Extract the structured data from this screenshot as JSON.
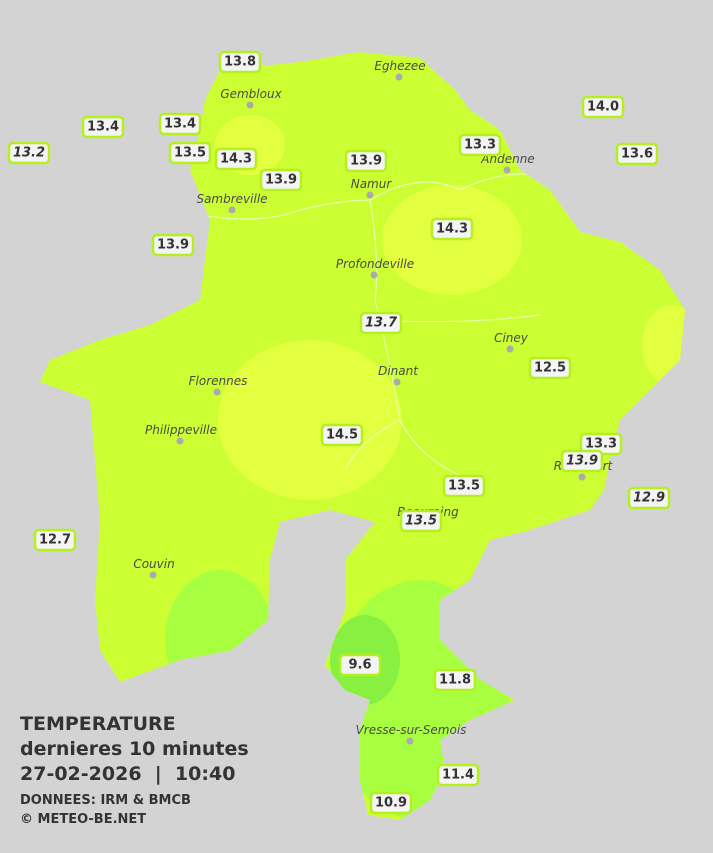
{
  "title": "TEMPERATURE",
  "subtitle": "dernieres 10 minutes",
  "datetime": "27-02-2026  |  10:40",
  "source": "DONNEES: IRM & BMCB",
  "copyright": "© METEO-BE.NET",
  "cities": [
    "Eghezee",
    "Gembloux",
    "Andenne",
    "Namur",
    "Sambreville",
    "Profondeville",
    "Ciney",
    "Dinant",
    "Florennes",
    "Philippeville",
    "Rochefort",
    "Beauraing",
    "Couvin",
    "Vresse-sur-Semois"
  ],
  "stations": [
    {
      "label": "13.8"
    },
    {
      "label": "13.4"
    },
    {
      "label": "13.4"
    },
    {
      "label": "13.2",
      "italic": true
    },
    {
      "label": "13.5"
    },
    {
      "label": "14.3"
    },
    {
      "label": "13.9"
    },
    {
      "label": "13.9"
    },
    {
      "label": "13.3"
    },
    {
      "label": "14.0"
    },
    {
      "label": "13.6"
    },
    {
      "label": "14.3"
    },
    {
      "label": "13.9"
    },
    {
      "label": "13.7",
      "italic": true
    },
    {
      "label": "12.5"
    },
    {
      "label": "14.5"
    },
    {
      "label": "13.3"
    },
    {
      "label": "13.9",
      "italic": true
    },
    {
      "label": "13.5"
    },
    {
      "label": "13.5",
      "italic": true
    },
    {
      "label": "12.9",
      "italic": true
    },
    {
      "label": "12.7"
    },
    {
      "label": "9.6"
    },
    {
      "label": "11.8"
    },
    {
      "label": "11.4"
    },
    {
      "label": "10.9"
    }
  ]
}
